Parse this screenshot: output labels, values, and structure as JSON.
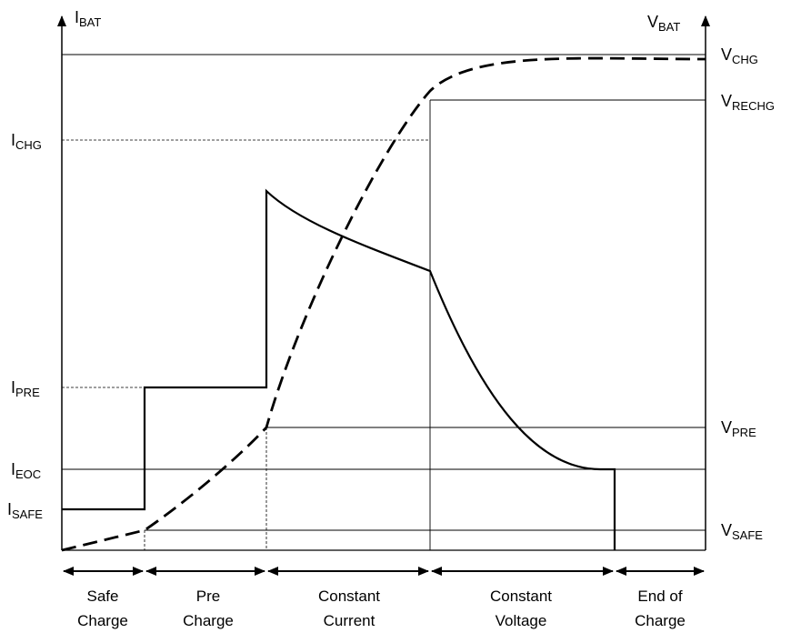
{
  "axes": {
    "left": {
      "main": "I",
      "sub": "BAT"
    },
    "right": {
      "main": "V",
      "sub": "BAT"
    }
  },
  "current_levels": [
    {
      "key": "chg",
      "main": "I",
      "sub": "CHG"
    },
    {
      "key": "pre",
      "main": "I",
      "sub": "PRE"
    },
    {
      "key": "eoc",
      "main": "I",
      "sub": "EOC"
    },
    {
      "key": "safe",
      "main": "I",
      "sub": "SAFE"
    }
  ],
  "voltage_levels": [
    {
      "key": "chg",
      "main": "V",
      "sub": "CHG"
    },
    {
      "key": "rechg",
      "main": "V",
      "sub": "RECHG"
    },
    {
      "key": "pre",
      "main": "V",
      "sub": "PRE"
    },
    {
      "key": "safe",
      "main": "V",
      "sub": "SAFE"
    }
  ],
  "phases": [
    {
      "line1": "Safe",
      "line2": "Charge"
    },
    {
      "line1": "Pre",
      "line2": "Charge"
    },
    {
      "line1": "Constant",
      "line2": "Current"
    },
    {
      "line1": "Constant",
      "line2": "Voltage"
    },
    {
      "line1": "End of",
      "line2": "Charge"
    }
  ],
  "curves": {
    "current": {
      "style": "solid",
      "color": "#000000"
    },
    "voltage": {
      "style": "dashed",
      "color": "#000000"
    }
  }
}
